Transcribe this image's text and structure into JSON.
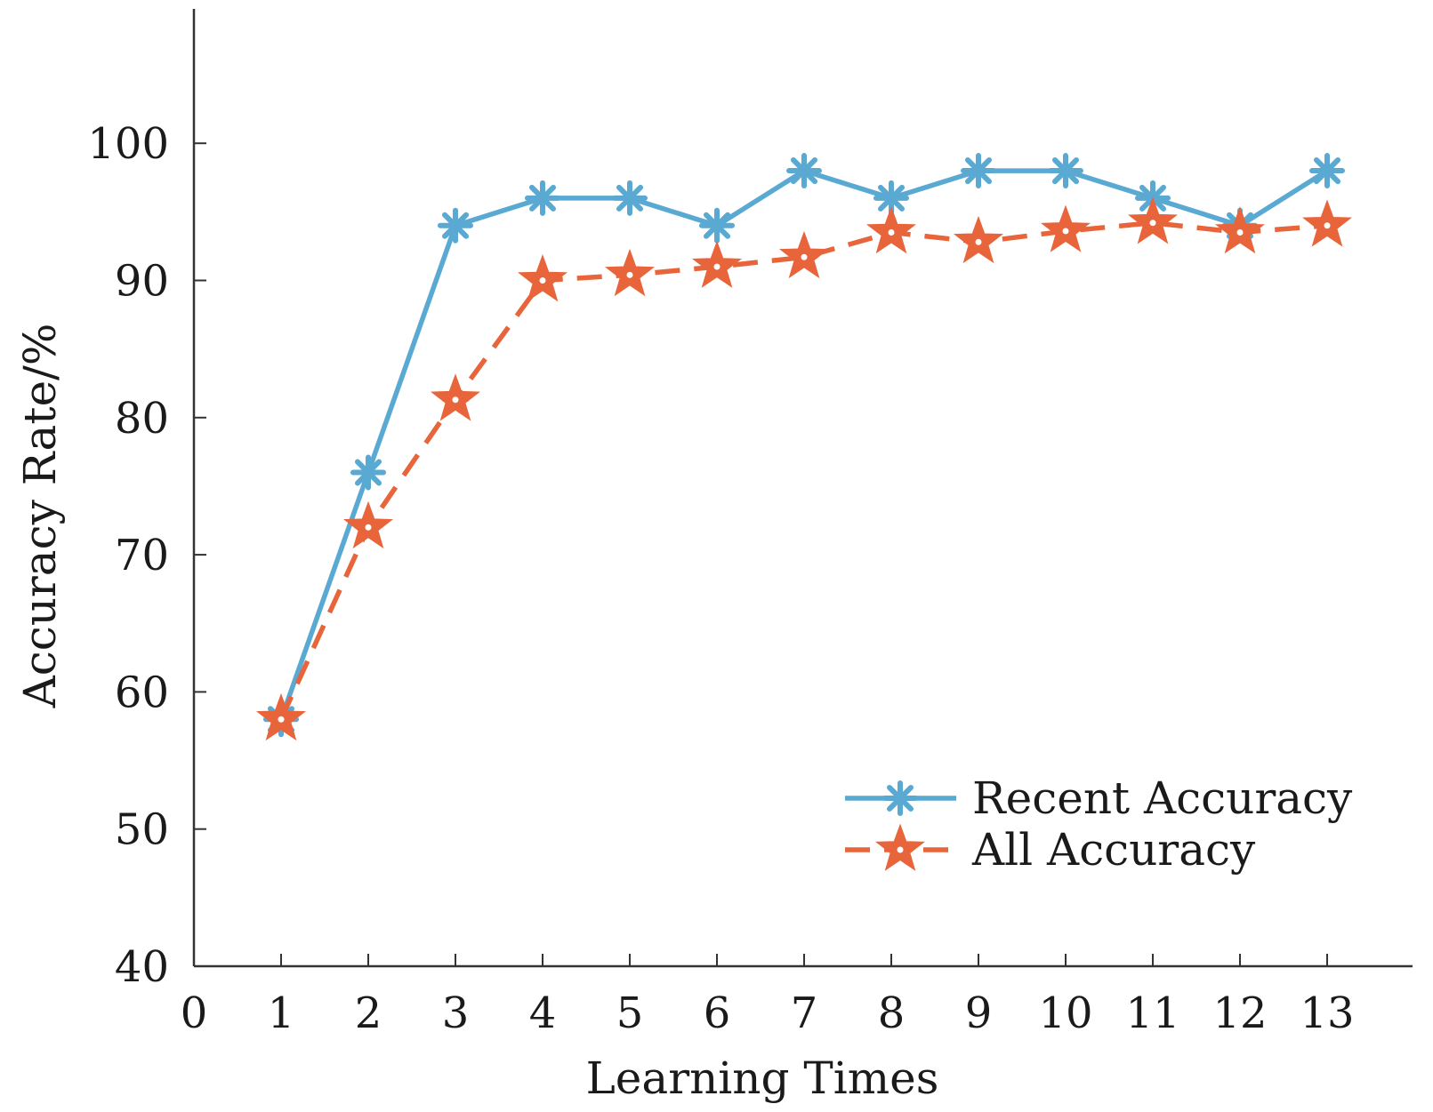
{
  "chart_data": {
    "type": "line",
    "title": "",
    "xlabel": "Learning Times",
    "ylabel": "Accuracy Rate/%",
    "xlim": [
      0,
      14
    ],
    "ylim": [
      40,
      110
    ],
    "x_ticks": [
      0,
      1,
      2,
      3,
      4,
      5,
      6,
      7,
      8,
      9,
      10,
      11,
      12,
      13
    ],
    "y_ticks": [
      40,
      50,
      60,
      70,
      80,
      90,
      100
    ],
    "grid": false,
    "legend_position": "bottom-right",
    "x": [
      1,
      2,
      3,
      4,
      5,
      6,
      7,
      8,
      9,
      10,
      11,
      12,
      13
    ],
    "series": [
      {
        "name": "Recent Accuracy",
        "color": "#5aa9d3",
        "line_style": "solid",
        "marker": "asterisk",
        "values": [
          58,
          76,
          94,
          96,
          96,
          94,
          98,
          96,
          98,
          98,
          96,
          94,
          98
        ]
      },
      {
        "name": "All Accuracy",
        "color": "#e8643a",
        "line_style": "dashed",
        "marker": "star",
        "values": [
          58,
          72,
          81.3,
          90,
          90.4,
          91,
          91.7,
          93.5,
          92.8,
          93.6,
          94.2,
          93.5,
          94
        ]
      }
    ]
  }
}
